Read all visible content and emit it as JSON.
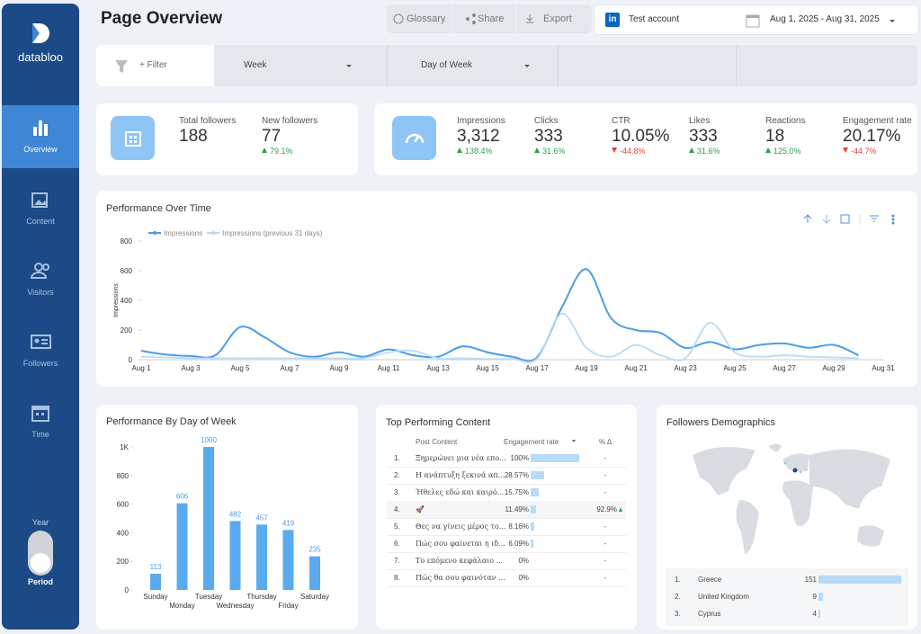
{
  "sidebar": {
    "brand": "databloo",
    "nav": [
      "Overview",
      "Content",
      "Visitors",
      "Followers",
      "Time"
    ],
    "toggle_top": "Year",
    "toggle_bottom": "Period"
  },
  "header": {
    "title": "Page Overview",
    "buttons": [
      "Glossary",
      "Share",
      "Export"
    ],
    "account": "Test account",
    "date_range": "Aug 1, 2025 - Aug 31, 2025"
  },
  "filters": [
    "+ Filter",
    "Week",
    "Day of Week"
  ],
  "kpis": [
    {
      "label": "Total followers",
      "value": "188"
    },
    {
      "label": "New followers",
      "value": "77",
      "change": "79.1%",
      "direction": "up"
    },
    {
      "label": "Impressions",
      "value": "3,312",
      "change": "138.4%",
      "direction": "up"
    },
    {
      "label": "Clicks",
      "value": "333",
      "change": "31.6%",
      "direction": "up"
    },
    {
      "label": "CTR",
      "value": "10.05%",
      "change": "-44.8%",
      "direction": "down"
    },
    {
      "label": "Likes",
      "value": "333",
      "change": "31.6%",
      "direction": "up"
    },
    {
      "label": "Reactions",
      "value": "18",
      "change": "125.0%",
      "direction": "up"
    },
    {
      "label": "Engagement rate",
      "value": "20.17%",
      "change": "-44.7%",
      "direction": "down"
    }
  ],
  "chart_data": [
    {
      "type": "line",
      "title": "Performance Over Time",
      "y_label": "Impressions",
      "categories": [
        "Aug 1",
        null,
        "Aug 3",
        null,
        "Aug 5",
        null,
        "Aug 7",
        null,
        "Aug 9",
        null,
        "Aug 11",
        null,
        "Aug 13",
        null,
        "Aug 15",
        null,
        "Aug 17",
        null,
        "Aug 19",
        null,
        "Aug 21",
        null,
        "Aug 23",
        null,
        "Aug 25",
        null,
        "Aug 27",
        null,
        "Aug 29",
        null,
        "Aug 31"
      ],
      "series": [
        {
          "name": "Impressions",
          "color": "#4a9de8",
          "values": [
            60,
            35,
            25,
            30,
            220,
            150,
            50,
            20,
            50,
            20,
            70,
            30,
            20,
            90,
            50,
            20,
            15,
            350,
            610,
            280,
            200,
            180,
            80,
            120,
            70,
            100,
            110,
            80,
            100,
            30,
            null
          ]
        },
        {
          "name": "Impressions (previous 31 days)",
          "color": "#b8dbf6",
          "values": [
            20,
            15,
            10,
            10,
            10,
            10,
            10,
            10,
            10,
            10,
            50,
            60,
            10,
            10,
            5,
            5,
            5,
            310,
            80,
            20,
            100,
            30,
            10,
            250,
            50,
            20,
            30,
            20,
            15,
            10,
            null
          ]
        }
      ],
      "ylim": [
        0,
        800
      ],
      "yticks": [
        0,
        200,
        400,
        600,
        800
      ],
      "grid": false
    },
    {
      "type": "bar",
      "title": "Performance By Day of Week",
      "categories": [
        "Sunday",
        "Monday",
        "Tuesday",
        "Wednesday",
        "Thursday",
        "Friday",
        "Saturday"
      ],
      "values": [
        113,
        606,
        1000,
        482,
        457,
        419,
        235
      ],
      "color": "#5aaaf0",
      "ylim": [
        0,
        1000
      ],
      "yticks": [
        0,
        200,
        400,
        600,
        800,
        {
          "value": 1000,
          "label": "1K"
        }
      ],
      "grid": false
    }
  ],
  "top_content": {
    "title": "Top Performing Content",
    "columns": [
      "Post Content",
      "Engagement rate",
      "% Δ"
    ],
    "rows": [
      {
        "rank": "1.",
        "post": "Ξημερώνει μια νέα επο...",
        "rate": 100,
        "rate_label": "100%",
        "delta": "-"
      },
      {
        "rank": "2.",
        "post": "Η ανάπτυξη ξεκινά απ...",
        "rate": 28.57,
        "rate_label": "28.57%",
        "delta": "-"
      },
      {
        "rank": "3.",
        "post": "Ήθελες εδώ και καιρό...",
        "rate": 15.75,
        "rate_label": "15.75%",
        "delta": "-"
      },
      {
        "rank": "4.",
        "post": "🚀",
        "rate": 11.49,
        "rate_label": "11.49%",
        "delta": "92.9%"
      },
      {
        "rank": "5.",
        "post": "Θες να γίνεις μέρος το...",
        "rate": 8.16,
        "rate_label": "8.16%",
        "delta": "-"
      },
      {
        "rank": "6.",
        "post": "Πώς σου φαίνεται η ιδ...",
        "rate": 6.09,
        "rate_label": "6.09%",
        "delta": "-"
      },
      {
        "rank": "7.",
        "post": "Το επόμενο κεφάλαιο ...",
        "rate": 0,
        "rate_label": "0%",
        "delta": "-"
      },
      {
        "rank": "8.",
        "post": "Πώς θα σου φαινόταν ...",
        "rate": 0,
        "rate_label": "0%",
        "delta": "-"
      }
    ]
  },
  "demographics": {
    "title": "Followers Demographics",
    "rows": [
      {
        "rank": "1.",
        "country": "Greece",
        "followers": 151
      },
      {
        "rank": "2.",
        "country": "United Kingdom",
        "followers": 9
      },
      {
        "rank": "3.",
        "country": "Cyprus",
        "followers": 4
      }
    ]
  }
}
